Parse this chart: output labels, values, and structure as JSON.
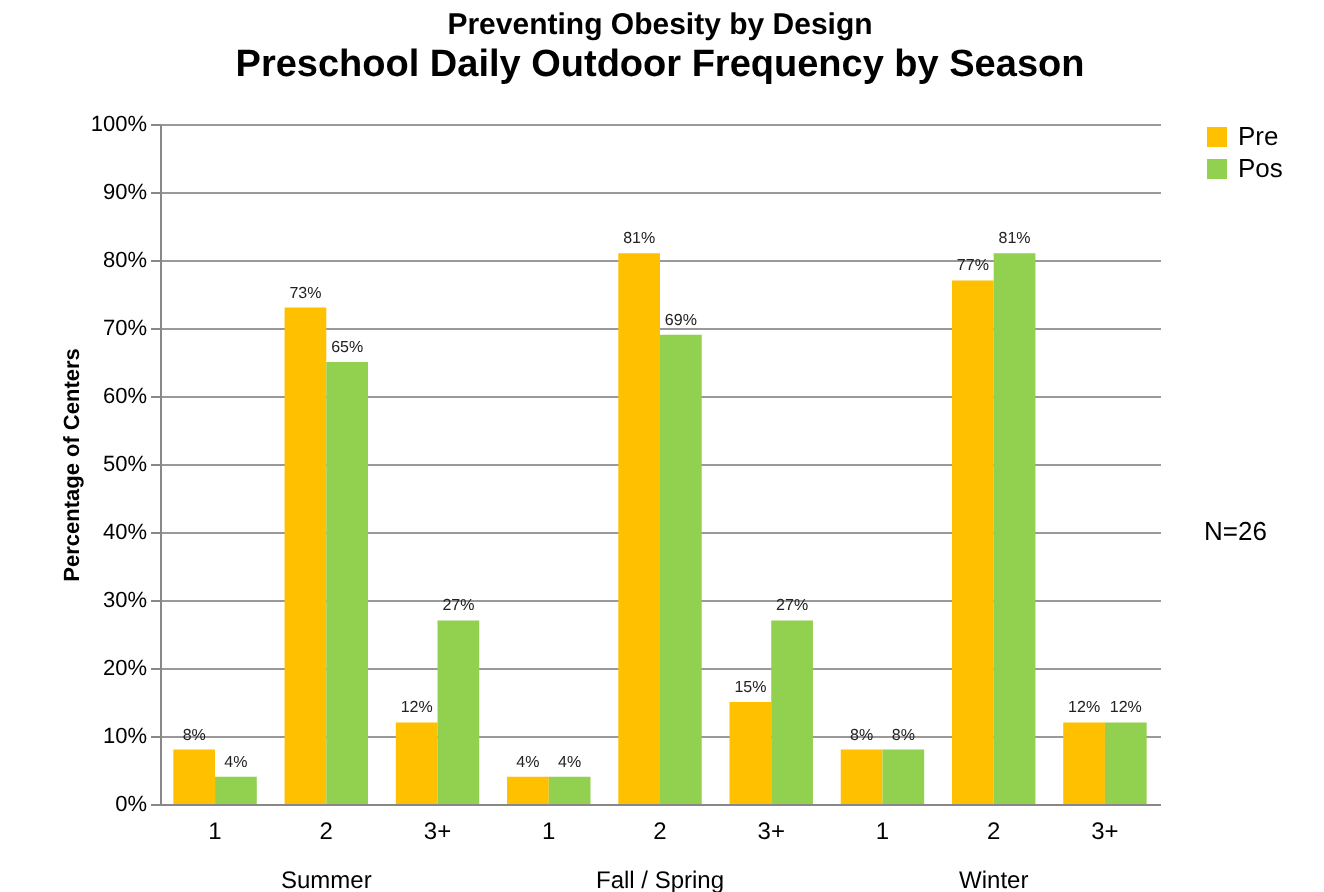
{
  "chart_data": {
    "type": "bar",
    "title": "Preventing Obesity by Design",
    "subtitle": "Preschool Daily Outdoor Frequency by Season",
    "ylabel": "Percentage of Centers",
    "categories": [
      "1",
      "2",
      "3+",
      "1",
      "2",
      "3+",
      "1",
      "2",
      "3+"
    ],
    "series": [
      {
        "name": "Pre",
        "color": "#ffc000",
        "values": [
          8,
          73,
          12,
          4,
          81,
          15,
          8,
          77,
          12
        ],
        "value_labels": [
          "8%",
          "73%",
          "12%",
          "4%",
          "81%",
          "15%",
          "8%",
          "77%",
          "12%"
        ]
      },
      {
        "name": "Pos",
        "color": "#92d050",
        "values": [
          4,
          65,
          27,
          4,
          69,
          27,
          8,
          81,
          12
        ],
        "value_labels": [
          "4%",
          "65%",
          "27%",
          "4%",
          "69%",
          "27%",
          "8%",
          "81%",
          "12%"
        ]
      }
    ],
    "ylim": [
      0,
      100
    ],
    "yticks": [
      {
        "value": 0,
        "label": "0%"
      },
      {
        "value": 10,
        "label": "10%"
      },
      {
        "value": 20,
        "label": "20%"
      },
      {
        "value": 30,
        "label": "30%"
      },
      {
        "value": 40,
        "label": "40%"
      },
      {
        "value": 50,
        "label": "50%"
      },
      {
        "value": 60,
        "label": "60%"
      },
      {
        "value": 70,
        "label": "70%"
      },
      {
        "value": 80,
        "label": "80%"
      },
      {
        "value": 90,
        "label": "90%"
      },
      {
        "value": 100,
        "label": "100%"
      }
    ],
    "grid": "y",
    "legend": "right",
    "annotations": [
      "Summer",
      "Fall / Spring",
      "Winter",
      "N=26"
    ]
  }
}
